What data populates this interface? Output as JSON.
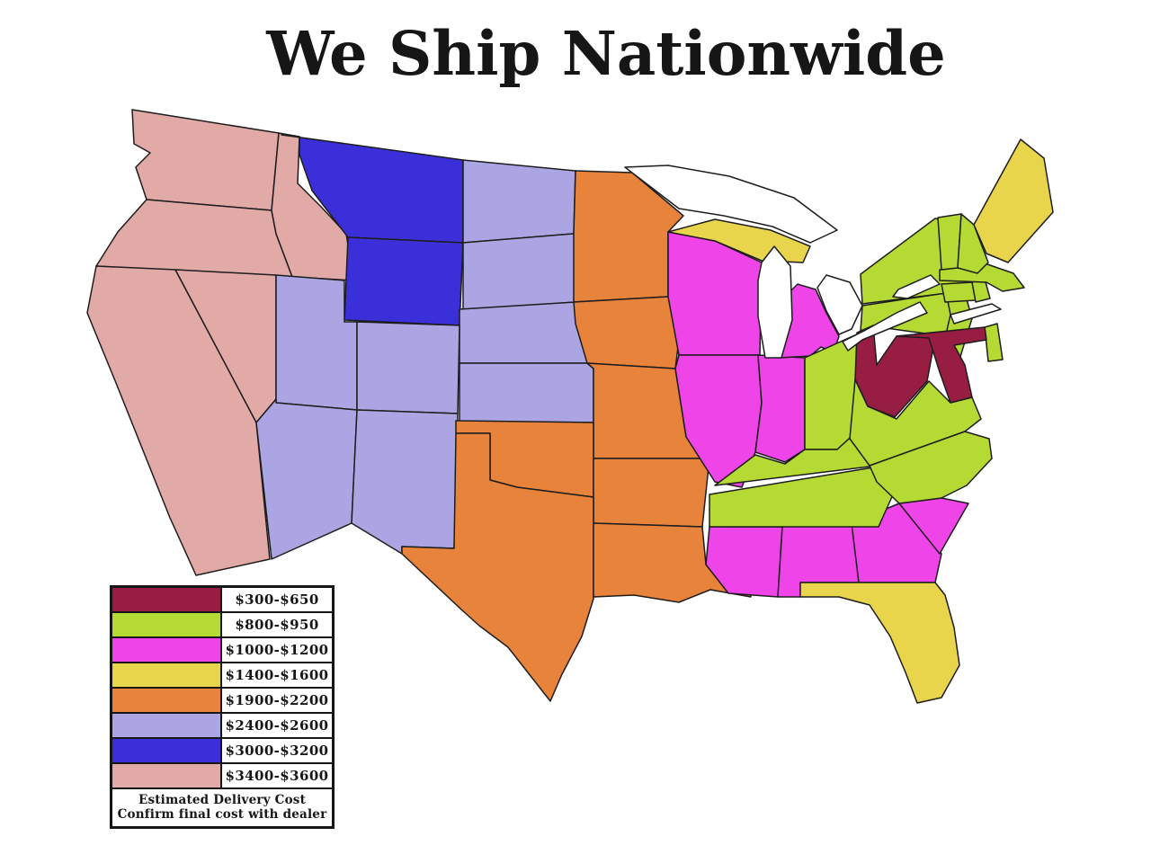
{
  "title": "We Ship Nationwide",
  "legend": {
    "rows": [
      {
        "label": "$300-$650",
        "color": "#971d43"
      },
      {
        "label": "$800-$950",
        "color": "#b5da33"
      },
      {
        "label": "$1000-$1200",
        "color": "#ee44e8"
      },
      {
        "label": "$1400-$1600",
        "color": "#e9d54b"
      },
      {
        "label": "$1900-$2200",
        "color": "#e8833c"
      },
      {
        "label": "$2400-$2600",
        "color": "#aba6e3"
      },
      {
        "label": "$3000-$3200",
        "color": "#3a2fd8"
      },
      {
        "label": "$3400-$3600",
        "color": "#e2aaa6"
      }
    ],
    "footer_line1": "Estimated Delivery Cost",
    "footer_line2": "Confirm final cost with dealer"
  },
  "map": {
    "regions": [
      {
        "price": "$3400-$3600",
        "color": "#e2aaa6",
        "states": [
          "WA",
          "OR",
          "ID",
          "CA",
          "NV"
        ]
      },
      {
        "price": "$3000-$3200",
        "color": "#3a2fd8",
        "states": [
          "MT",
          "WY"
        ]
      },
      {
        "price": "$2400-$2600",
        "color": "#aba6e3",
        "states": [
          "ND",
          "SD",
          "NE",
          "KS",
          "UT",
          "CO",
          "AZ",
          "NM"
        ]
      },
      {
        "price": "$1900-$2200",
        "color": "#e8833c",
        "states": [
          "MN",
          "IA",
          "MO",
          "OK",
          "AR",
          "TX",
          "LA"
        ]
      },
      {
        "price": "$1000-$1200",
        "color": "#ee44e8",
        "states": [
          "WI",
          "IL",
          "IN",
          "MI",
          "MS",
          "AL",
          "GA",
          "SC"
        ]
      },
      {
        "price": "$1400-$1600",
        "color": "#e9d54b",
        "states": [
          "ME",
          "FL",
          "MI-UP"
        ]
      },
      {
        "price": "$800-$950",
        "color": "#b5da33",
        "states": [
          "OH",
          "KY",
          "TN",
          "PA",
          "NY",
          "NJ",
          "DE",
          "CT",
          "RI",
          "MA",
          "VT",
          "NH",
          "VA",
          "NC"
        ]
      },
      {
        "price": "$300-$650",
        "color": "#971d43",
        "states": [
          "WV",
          "MD"
        ]
      }
    ]
  }
}
